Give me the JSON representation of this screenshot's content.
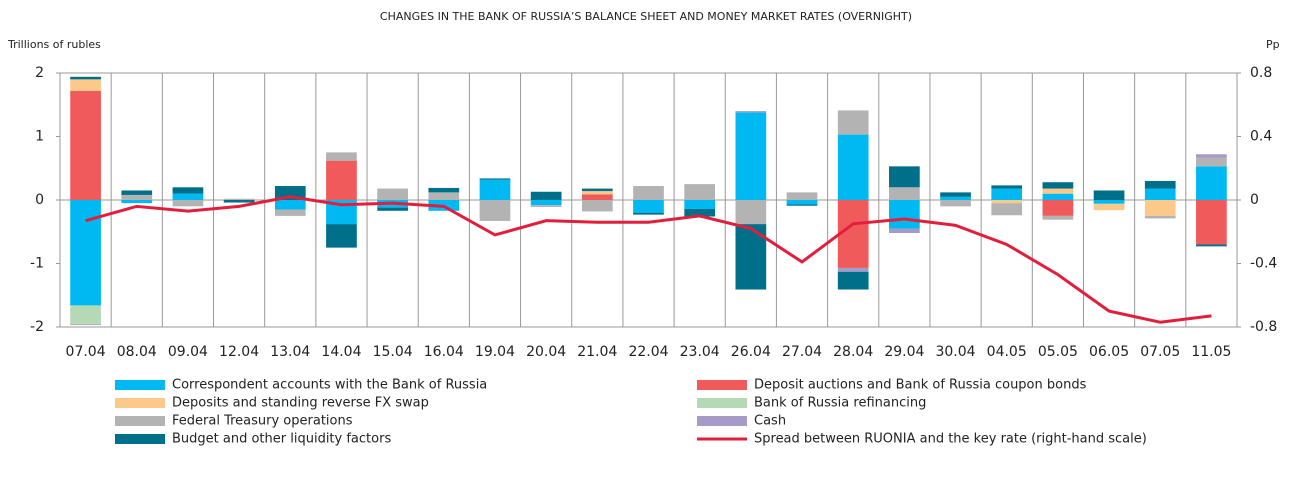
{
  "chart_data": {
    "type": "bar",
    "stacked": true,
    "title": "CHANGES IN THE BANK OF RUSSIA’S BALANCE SHEET AND MONEY MARKET RATES (OVERNIGHT)",
    "y_label": "Trillions of rubles",
    "y2_label": "Pp",
    "categories": [
      "07.04",
      "08.04",
      "09.04",
      "12.04",
      "13.04",
      "14.04",
      "15.04",
      "16.04",
      "19.04",
      "20.04",
      "21.04",
      "22.04",
      "23.04",
      "26.04",
      "27.04",
      "28.04",
      "29.04",
      "30.04",
      "04.05",
      "05.05",
      "06.05",
      "07.05",
      "11.05"
    ],
    "ylim": [
      -2,
      2
    ],
    "yticks": [
      2,
      1,
      0,
      -1,
      -2
    ],
    "y2lim": [
      -0.8,
      0.8
    ],
    "y2ticks": [
      0.8,
      0.4,
      0,
      -0.4,
      -0.8
    ],
    "series": [
      {
        "name": "Correspondent accounts with the Bank of Russia",
        "color": "#00b9f2",
        "values": [
          -1.66,
          -0.05,
          0.1,
          0,
          -0.15,
          -0.38,
          -0.12,
          -0.17,
          0.32,
          -0.08,
          0,
          -0.2,
          -0.14,
          1.38,
          -0.07,
          1.03,
          -0.45,
          0.05,
          0.18,
          0.1,
          -0.06,
          0.18,
          0.53
        ]
      },
      {
        "name": "Deposit auctions and Bank of Russia coupon bonds",
        "color": "#f05a5a",
        "values": [
          1.72,
          0,
          0,
          0,
          0,
          0.62,
          0,
          0,
          0,
          0,
          0.09,
          0,
          0,
          0,
          0,
          -1.07,
          0,
          0,
          0,
          -0.25,
          0,
          0,
          -0.7
        ]
      },
      {
        "name": "Deposits and standing reverse FX swap",
        "color": "#fdc98a",
        "values": [
          0.18,
          0,
          0,
          0,
          0,
          0,
          0,
          0,
          0,
          0,
          0.05,
          0,
          0,
          0,
          0,
          0,
          0,
          0,
          -0.05,
          0.08,
          -0.1,
          -0.25,
          0
        ]
      },
      {
        "name": "Bank of Russia refinancing",
        "color": "#b5d9b4",
        "values": [
          -0.29,
          0,
          0,
          0,
          0,
          0,
          0,
          0,
          0,
          0,
          0,
          0,
          0,
          0,
          0,
          0,
          0,
          0,
          0,
          0,
          0,
          0,
          0
        ]
      },
      {
        "name": "Federal Treasury operations",
        "color": "#b3b3b3",
        "values": [
          -0.02,
          0.08,
          -0.1,
          0.02,
          -0.1,
          0.13,
          0.18,
          0.12,
          -0.33,
          -0.03,
          -0.18,
          0.22,
          0.25,
          -0.38,
          0.12,
          0.38,
          0.2,
          -0.1,
          -0.19,
          -0.06,
          0,
          -0.04,
          0.14
        ]
      },
      {
        "name": "Cash",
        "color": "#a59ac8",
        "values": [
          0,
          0,
          0,
          0,
          0,
          0,
          0,
          0,
          0,
          0,
          0,
          0,
          0,
          0.02,
          0,
          -0.06,
          -0.07,
          0,
          0,
          0,
          0,
          0,
          0.05
        ]
      },
      {
        "name": "Budget and other liquidity factors",
        "color": "#006f8a",
        "values": [
          0.04,
          0.07,
          0.1,
          -0.04,
          0.22,
          -0.37,
          -0.05,
          0.07,
          0.02,
          0.13,
          0.04,
          -0.03,
          -0.12,
          -1.03,
          -0.02,
          -0.28,
          0.33,
          0.07,
          0.05,
          0.1,
          0.15,
          0.12,
          -0.03
        ]
      },
      {
        "name": "Spread between RUONIA and the key rate (right-hand scale)",
        "color": "#e31e3c",
        "type": "line",
        "axis": "y2",
        "values": [
          -0.13,
          -0.04,
          -0.07,
          -0.04,
          0.02,
          -0.03,
          -0.02,
          -0.04,
          -0.22,
          -0.13,
          -0.14,
          -0.14,
          -0.1,
          -0.18,
          -0.39,
          -0.15,
          -0.12,
          -0.16,
          -0.28,
          -0.47,
          -0.7,
          -0.77,
          -0.73
        ]
      }
    ]
  }
}
